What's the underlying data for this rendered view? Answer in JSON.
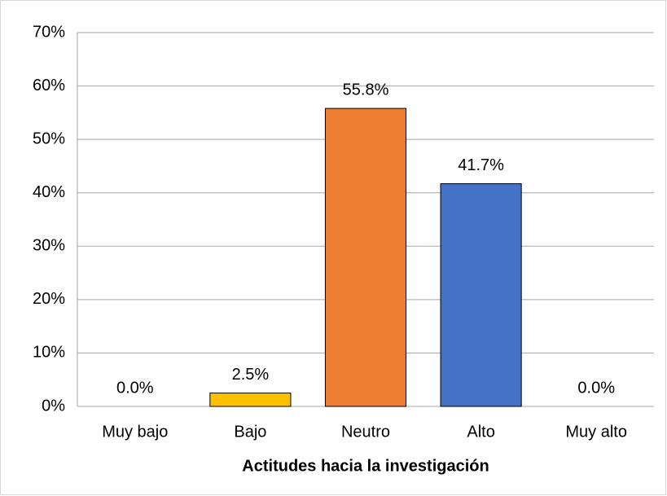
{
  "chart_data": {
    "type": "bar",
    "xlabel": "Actitudes hacia la investigación",
    "categories": [
      "Muy bajo",
      "Bajo",
      "Neutro",
      "Alto",
      "Muy alto"
    ],
    "values": [
      0,
      2.5,
      55.8,
      41.7,
      0
    ],
    "value_labels": [
      "0.0%",
      "2.5%",
      "55.8%",
      "41.7%",
      "0.0%"
    ],
    "colors": [
      "#5b9bd5",
      "#ffc000",
      "#ed7d31",
      "#4472c4",
      "#70ad47"
    ],
    "ylim": [
      0,
      70
    ],
    "yticks": [
      {
        "value": 0,
        "label": "0%"
      },
      {
        "value": 10,
        "label": "10%"
      },
      {
        "value": 20,
        "label": "20%"
      },
      {
        "value": 30,
        "label": "30%"
      },
      {
        "value": 40,
        "label": "40%"
      },
      {
        "value": 50,
        "label": "50%"
      },
      {
        "value": 60,
        "label": "60%"
      },
      {
        "value": 70,
        "label": "70%"
      }
    ],
    "grid": true
  }
}
